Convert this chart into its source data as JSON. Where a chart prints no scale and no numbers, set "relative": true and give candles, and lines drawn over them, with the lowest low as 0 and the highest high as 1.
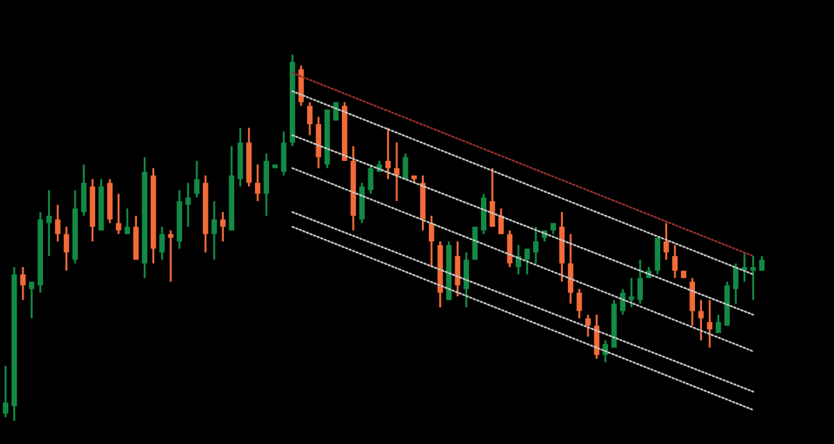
{
  "chart_data": {
    "type": "candlestick",
    "relative": true,
    "tick_labels": false,
    "grid": false,
    "categories": [
      null,
      null,
      null,
      null,
      null,
      null,
      null,
      null,
      null,
      null,
      null,
      null,
      null,
      null,
      null,
      null,
      null,
      null,
      null,
      null,
      null,
      null,
      null,
      null,
      null,
      null,
      null,
      null,
      null,
      null,
      null,
      null,
      null,
      null,
      null,
      null,
      null,
      null,
      null,
      null,
      null,
      null,
      null,
      null,
      null,
      null,
      null,
      null,
      null,
      null,
      null,
      null,
      null,
      null,
      null,
      null,
      null,
      null,
      null,
      null,
      null,
      null,
      null,
      null,
      null,
      null,
      null,
      null,
      null,
      null,
      null,
      null,
      null,
      null,
      null,
      null,
      null,
      null,
      null,
      null,
      null,
      null,
      null,
      null,
      null,
      null,
      null,
      null
    ],
    "ohlc": [
      [
        0.02,
        0.15,
        0.01,
        0.05
      ],
      [
        0.04,
        0.42,
        0,
        0.4
      ],
      [
        0.4,
        0.42,
        0.33,
        0.37
      ],
      [
        0.36,
        0.38,
        0.28,
        0.38
      ],
      [
        0.37,
        0.57,
        0.35,
        0.55
      ],
      [
        0.54,
        0.63,
        0.45,
        0.56
      ],
      [
        0.55,
        0.59,
        0.49,
        0.51
      ],
      [
        0.51,
        0.53,
        0.41,
        0.46
      ],
      [
        0.44,
        0.63,
        0.43,
        0.58
      ],
      [
        0.57,
        0.7,
        0.56,
        0.65
      ],
      [
        0.64,
        0.66,
        0.49,
        0.53
      ],
      [
        0.52,
        0.66,
        0.52,
        0.64
      ],
      [
        0.65,
        0.66,
        0.54,
        0.55
      ],
      [
        0.54,
        0.62,
        0.51,
        0.52
      ],
      [
        0.51,
        0.58,
        0.51,
        0.53
      ],
      [
        0.53,
        0.56,
        0.44,
        0.44
      ],
      [
        0.43,
        0.72,
        0.39,
        0.68
      ],
      [
        0.67,
        0.69,
        0.43,
        0.47
      ],
      [
        0.46,
        0.53,
        0.44,
        0.51
      ],
      [
        0.51,
        0.52,
        0.38,
        0.5
      ],
      [
        0.49,
        0.63,
        0.47,
        0.6
      ],
      [
        0.59,
        0.65,
        0.53,
        0.61
      ],
      [
        0.62,
        0.71,
        0.61,
        0.66
      ],
      [
        0.65,
        0.67,
        0.46,
        0.51
      ],
      [
        0.51,
        0.6,
        0.44,
        0.55
      ],
      [
        0.55,
        0.57,
        0.49,
        0.53
      ],
      [
        0.52,
        0.75,
        0.52,
        0.67
      ],
      [
        0.66,
        0.8,
        0.64,
        0.76
      ],
      [
        0.76,
        0.8,
        0.64,
        0.65
      ],
      [
        0.65,
        0.7,
        0.6,
        0.62
      ],
      [
        0.62,
        0.73,
        0.56,
        0.71
      ],
      [
        0.69,
        0.7,
        0.69,
        0.7
      ],
      [
        0.68,
        0.79,
        0.67,
        0.76
      ],
      [
        0.76,
        1.0,
        0.75,
        0.98
      ],
      [
        0.96,
        0.97,
        0.86,
        0.87
      ],
      [
        0.86,
        0.87,
        0.78,
        0.81
      ],
      [
        0.81,
        0.83,
        0.69,
        0.72
      ],
      [
        0.7,
        0.85,
        0.69,
        0.85
      ],
      [
        0.82,
        0.87,
        0.82,
        0.87
      ],
      [
        0.86,
        0.87,
        0.71,
        0.71
      ],
      [
        0.71,
        0.75,
        0.52,
        0.56
      ],
      [
        0.55,
        0.65,
        0.54,
        0.64
      ],
      [
        0.63,
        0.7,
        0.62,
        0.69
      ],
      [
        0.68,
        0.71,
        0.68,
        0.7
      ],
      [
        0.71,
        0.8,
        0.66,
        0.69
      ],
      [
        0.69,
        0.76,
        0.6,
        0.67
      ],
      [
        0.66,
        0.73,
        0.66,
        0.72
      ],
      [
        0.67,
        0.67,
        0.65,
        0.66
      ],
      [
        0.65,
        0.67,
        0.52,
        0.55
      ],
      [
        0.54,
        0.56,
        0.42,
        0.49
      ],
      [
        0.48,
        0.49,
        0.31,
        0.35
      ],
      [
        0.33,
        0.49,
        0.33,
        0.48
      ],
      [
        0.45,
        0.49,
        0.34,
        0.37
      ],
      [
        0.36,
        0.46,
        0.31,
        0.44
      ],
      [
        0.44,
        0.53,
        0.44,
        0.53
      ],
      [
        0.52,
        0.62,
        0.51,
        0.61
      ],
      [
        0.6,
        0.69,
        0.53,
        0.53
      ],
      [
        0.56,
        0.58,
        0.51,
        0.51
      ],
      [
        0.51,
        0.52,
        0.42,
        0.43
      ],
      [
        0.42,
        0.48,
        0.4,
        0.45
      ],
      [
        0.44,
        0.47,
        0.4,
        0.47
      ],
      [
        0.46,
        0.53,
        0.43,
        0.49
      ],
      [
        0.5,
        0.52,
        0.49,
        0.52
      ],
      [
        0.52,
        0.54,
        0.51,
        0.54
      ],
      [
        0.53,
        0.57,
        0.38,
        0.43
      ],
      [
        0.43,
        0.51,
        0.32,
        0.35
      ],
      [
        0.35,
        0.36,
        0.28,
        0.3
      ],
      [
        0.28,
        0.29,
        0.23,
        0.26
      ],
      [
        0.26,
        0.29,
        0.17,
        0.18
      ],
      [
        0.18,
        0.22,
        0.16,
        0.21
      ],
      [
        0.2,
        0.33,
        0.2,
        0.32
      ],
      [
        0.3,
        0.36,
        0.29,
        0.35
      ],
      [
        0.33,
        0.39,
        0.31,
        0.34
      ],
      [
        0.33,
        0.44,
        0.32,
        0.39
      ],
      [
        0.39,
        0.42,
        0.39,
        0.41
      ],
      [
        0.41,
        0.5,
        0.4,
        0.5
      ],
      [
        0.49,
        0.54,
        0.44,
        0.46
      ],
      [
        0.45,
        0.48,
        0.39,
        0.41
      ],
      [
        0.41,
        0.41,
        0.39,
        0.39
      ],
      [
        0.38,
        0.39,
        0.26,
        0.3
      ],
      [
        0.3,
        0.33,
        0.22,
        0.28
      ],
      [
        0.27,
        0.33,
        0.2,
        0.25
      ],
      [
        0.24,
        0.29,
        0.24,
        0.27
      ],
      [
        0.26,
        0.38,
        0.26,
        0.37
      ],
      [
        0.36,
        0.43,
        0.32,
        0.42
      ],
      [
        0.41,
        0.46,
        0.38,
        0.42
      ],
      [
        0.41,
        0.45,
        0.33,
        0.42
      ],
      [
        0.41,
        0.45,
        0.41,
        0.44
      ]
    ],
    "colors": [
      "#138a45",
      "#138a45",
      "#f26b38",
      "#138a45",
      "#138a45",
      "#138a45",
      "#f26b38",
      "#f26b38",
      "#138a45",
      "#138a45",
      "#f26b38",
      "#138a45",
      "#f26b38",
      "#f26b38",
      "#138a45",
      "#f26b38",
      "#138a45",
      "#f26b38",
      "#138a45",
      "#f26b38",
      "#138a45",
      "#138a45",
      "#138a45",
      "#f26b38",
      "#138a45",
      "#f26b38",
      "#138a45",
      "#138a45",
      "#f26b38",
      "#f26b38",
      "#138a45",
      "#138a45",
      "#138a45",
      "#138a45",
      "#f26b38",
      "#f26b38",
      "#f26b38",
      "#138a45",
      "#138a45",
      "#f26b38",
      "#f26b38",
      "#138a45",
      "#138a45",
      "#138a45",
      "#f26b38",
      "#f26b38",
      "#138a45",
      "#f26b38",
      "#f26b38",
      "#f26b38",
      "#f26b38",
      "#138a45",
      "#f26b38",
      "#138a45",
      "#138a45",
      "#138a45",
      "#f26b38",
      "#f26b38",
      "#f26b38",
      "#138a45",
      "#138a45",
      "#138a45",
      "#138a45",
      "#138a45",
      "#f26b38",
      "#f26b38",
      "#f26b38",
      "#f26b38",
      "#f26b38",
      "#138a45",
      "#138a45",
      "#138a45",
      "#138a45",
      "#138a45",
      "#138a45",
      "#138a45",
      "#f26b38",
      "#f26b38",
      "#f26b38",
      "#f26b38",
      "#f26b38",
      "#f26b38",
      "#138a45",
      "#138a45",
      "#138a45",
      "#138a45",
      "#138a45",
      "#138a45"
    ],
    "series": [
      {
        "type": "line",
        "color": "#9b2f2f",
        "line_style": "dotted",
        "values": [
          null,
          null,
          null,
          null,
          null,
          null,
          null,
          null,
          null,
          null,
          null,
          null,
          null,
          null,
          null,
          null,
          null,
          null,
          null,
          null,
          null,
          null,
          null,
          null,
          null,
          null,
          null,
          null,
          null,
          null,
          null,
          null,
          null,
          0.95,
          null,
          null,
          null,
          null,
          null,
          null,
          null,
          null,
          null,
          null,
          null,
          null,
          null,
          null,
          null,
          null,
          null,
          null,
          null,
          null,
          null,
          null,
          null,
          null,
          null,
          null,
          null,
          null,
          null,
          null,
          null,
          null,
          null,
          null,
          null,
          null,
          null,
          null,
          null,
          null,
          null,
          null,
          null,
          null,
          null,
          null,
          null,
          null,
          null,
          null,
          null,
          null,
          0.45,
          null
        ]
      },
      {
        "type": "line",
        "color": "#c8c8c8",
        "line_style": "dotted",
        "values": [
          null,
          null,
          null,
          null,
          null,
          null,
          null,
          null,
          null,
          null,
          null,
          null,
          null,
          null,
          null,
          null,
          null,
          null,
          null,
          null,
          null,
          null,
          null,
          null,
          null,
          null,
          null,
          null,
          null,
          null,
          null,
          null,
          null,
          0.9,
          null,
          null,
          null,
          null,
          null,
          null,
          null,
          null,
          null,
          null,
          null,
          null,
          null,
          null,
          null,
          null,
          null,
          null,
          null,
          null,
          null,
          null,
          null,
          null,
          null,
          null,
          null,
          null,
          null,
          null,
          null,
          null,
          null,
          null,
          null,
          null,
          null,
          null,
          null,
          null,
          null,
          null,
          null,
          null,
          null,
          null,
          null,
          null,
          null,
          null,
          null,
          null,
          0.4,
          null
        ]
      },
      {
        "type": "line",
        "color": "#c8c8c8",
        "line_style": "dotted",
        "values": [
          null,
          null,
          null,
          null,
          null,
          null,
          null,
          null,
          null,
          null,
          null,
          null,
          null,
          null,
          null,
          null,
          null,
          null,
          null,
          null,
          null,
          null,
          null,
          null,
          null,
          null,
          null,
          null,
          null,
          null,
          null,
          null,
          null,
          0.78,
          null,
          null,
          null,
          null,
          null,
          null,
          null,
          null,
          null,
          null,
          null,
          null,
          null,
          null,
          null,
          null,
          null,
          null,
          null,
          null,
          null,
          null,
          null,
          null,
          null,
          null,
          null,
          null,
          null,
          null,
          null,
          null,
          null,
          null,
          null,
          null,
          null,
          null,
          null,
          null,
          null,
          null,
          null,
          null,
          null,
          null,
          null,
          null,
          null,
          null,
          null,
          null,
          0.29,
          null
        ]
      },
      {
        "type": "line",
        "color": "#c8c8c8",
        "line_style": "dotted",
        "values": [
          null,
          null,
          null,
          null,
          null,
          null,
          null,
          null,
          null,
          null,
          null,
          null,
          null,
          null,
          null,
          null,
          null,
          null,
          null,
          null,
          null,
          null,
          null,
          null,
          null,
          null,
          null,
          null,
          null,
          null,
          null,
          null,
          null,
          0.69,
          null,
          null,
          null,
          null,
          null,
          null,
          null,
          null,
          null,
          null,
          null,
          null,
          null,
          null,
          null,
          null,
          null,
          null,
          null,
          null,
          null,
          null,
          null,
          null,
          null,
          null,
          null,
          null,
          null,
          null,
          null,
          null,
          null,
          null,
          null,
          null,
          null,
          null,
          null,
          null,
          null,
          null,
          null,
          null,
          null,
          null,
          null,
          null,
          null,
          null,
          null,
          null,
          0.19,
          null
        ]
      },
      {
        "type": "line",
        "color": "#c8c8c8",
        "line_style": "dotted",
        "values": [
          null,
          null,
          null,
          null,
          null,
          null,
          null,
          null,
          null,
          null,
          null,
          null,
          null,
          null,
          null,
          null,
          null,
          null,
          null,
          null,
          null,
          null,
          null,
          null,
          null,
          null,
          null,
          null,
          null,
          null,
          null,
          null,
          null,
          0.57,
          null,
          null,
          null,
          null,
          null,
          null,
          null,
          null,
          null,
          null,
          null,
          null,
          null,
          null,
          null,
          null,
          null,
          null,
          null,
          null,
          null,
          null,
          null,
          null,
          null,
          null,
          null,
          null,
          null,
          null,
          null,
          null,
          null,
          null,
          null,
          null,
          null,
          null,
          null,
          null,
          null,
          null,
          null,
          null,
          null,
          null,
          null,
          null,
          null,
          null,
          null,
          null,
          0.08,
          null
        ]
      },
      {
        "type": "line",
        "color": "#c8c8c8",
        "line_style": "dotted",
        "values": [
          null,
          null,
          null,
          null,
          null,
          null,
          null,
          null,
          null,
          null,
          null,
          null,
          null,
          null,
          null,
          null,
          null,
          null,
          null,
          null,
          null,
          null,
          null,
          null,
          null,
          null,
          null,
          null,
          null,
          null,
          null,
          null,
          null,
          0.53,
          null,
          null,
          null,
          null,
          null,
          null,
          null,
          null,
          null,
          null,
          null,
          null,
          null,
          null,
          null,
          null,
          null,
          null,
          null,
          null,
          null,
          null,
          null,
          null,
          null,
          null,
          null,
          null,
          null,
          null,
          null,
          null,
          null,
          null,
          null,
          null,
          null,
          null,
          null,
          null,
          null,
          null,
          null,
          null,
          null,
          null,
          null,
          null,
          null,
          null,
          null,
          null,
          0.03,
          null
        ]
      }
    ]
  }
}
